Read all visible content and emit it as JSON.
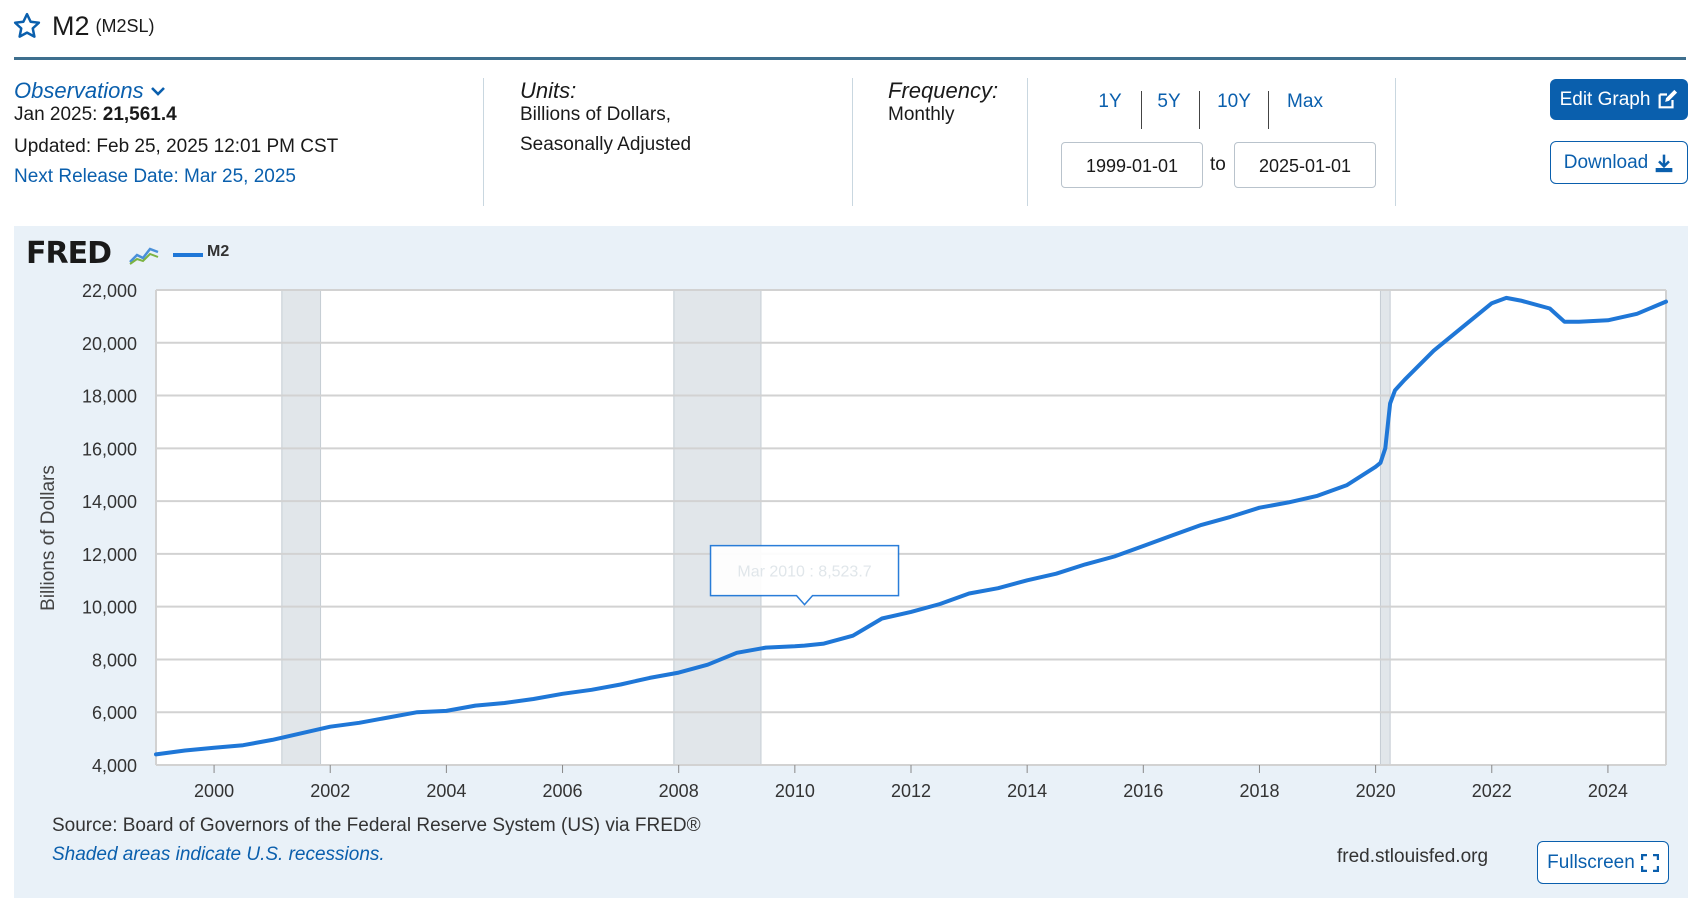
{
  "header": {
    "title": "M2",
    "series_id": "(M2SL)"
  },
  "observations": {
    "label": "Observations",
    "date_label": "Jan 2025:",
    "value": "21,561.4",
    "updated": "Updated: Feb 25, 2025 12:01 PM CST",
    "next_release": "Next Release Date: Mar 25, 2025"
  },
  "units": {
    "label": "Units:",
    "line1": "Billions of Dollars,",
    "line2": "Seasonally Adjusted"
  },
  "frequency": {
    "label": "Frequency:",
    "value": "Monthly"
  },
  "range": {
    "buttons": [
      "1Y",
      "5Y",
      "10Y",
      "Max"
    ],
    "start": "1999-01-01",
    "to": "to",
    "end": "2025-01-01"
  },
  "actions": {
    "edit": "Edit Graph",
    "download": "Download",
    "fullscreen": "Fullscreen"
  },
  "legend": {
    "logo": "FRED",
    "series": "M2"
  },
  "tooltip": {
    "text": "Mar 2010 : 8,523.7"
  },
  "footer": {
    "source": "Source: Board of Governors of the Federal Reserve System (US) via FRED®",
    "shaded": "Shaded areas indicate U.S. recessions.",
    "site": "fred.stlouisfed.org"
  },
  "colors": {
    "series": "#1f77d7",
    "accent": "#0a5fad",
    "panel": "#e9f1f8",
    "recession": "#e1e6ea"
  },
  "chart_data": {
    "type": "line",
    "ylabel": "Billions of Dollars",
    "xlabel": "",
    "x_ticks": [
      2000,
      2002,
      2004,
      2006,
      2008,
      2010,
      2012,
      2014,
      2016,
      2018,
      2020,
      2022,
      2024
    ],
    "y_ticks": [
      4000,
      6000,
      8000,
      10000,
      12000,
      14000,
      16000,
      18000,
      20000,
      22000
    ],
    "y_tick_labels": [
      "4,000",
      "6,000",
      "8,000",
      "10,000",
      "12,000",
      "14,000",
      "16,000",
      "18,000",
      "20,000",
      "22,000"
    ],
    "xlim": [
      "1999-01-01",
      "2025-01-01"
    ],
    "ylim": [
      4000,
      22000
    ],
    "grid": true,
    "recessions": [
      {
        "start": "2001-03-01",
        "end": "2001-11-01"
      },
      {
        "start": "2007-12-01",
        "end": "2009-06-01"
      },
      {
        "start": "2020-02-01",
        "end": "2020-04-01"
      }
    ],
    "series": [
      {
        "name": "M2",
        "x": [
          "1999-01-01",
          "1999-07-01",
          "2000-01-01",
          "2000-07-01",
          "2001-01-01",
          "2001-07-01",
          "2002-01-01",
          "2002-07-01",
          "2003-01-01",
          "2003-07-01",
          "2004-01-01",
          "2004-07-01",
          "2005-01-01",
          "2005-07-01",
          "2006-01-01",
          "2006-07-01",
          "2007-01-01",
          "2007-07-01",
          "2008-01-01",
          "2008-07-01",
          "2009-01-01",
          "2009-07-01",
          "2010-01-01",
          "2010-03-01",
          "2010-07-01",
          "2011-01-01",
          "2011-07-01",
          "2012-01-01",
          "2012-07-01",
          "2013-01-01",
          "2013-07-01",
          "2014-01-01",
          "2014-07-01",
          "2015-01-01",
          "2015-07-01",
          "2016-01-01",
          "2016-07-01",
          "2017-01-01",
          "2017-07-01",
          "2018-01-01",
          "2018-07-01",
          "2019-01-01",
          "2019-07-01",
          "2020-01-01",
          "2020-02-01",
          "2020-03-01",
          "2020-04-01",
          "2020-05-01",
          "2020-07-01",
          "2021-01-01",
          "2021-07-01",
          "2022-01-01",
          "2022-04-01",
          "2022-07-01",
          "2023-01-01",
          "2023-04-01",
          "2023-07-01",
          "2024-01-01",
          "2024-07-01",
          "2025-01-01"
        ],
        "y": [
          4400,
          4550,
          4650,
          4750,
          4950,
          5200,
          5450,
          5600,
          5800,
          6000,
          6050,
          6250,
          6350,
          6500,
          6700,
          6850,
          7050,
          7300,
          7500,
          7800,
          8250,
          8450,
          8500,
          8523.7,
          8600,
          8900,
          9550,
          9800,
          10100,
          10500,
          10700,
          11000,
          11250,
          11600,
          11900,
          12300,
          12700,
          13100,
          13400,
          13750,
          13950,
          14200,
          14600,
          15300,
          15450,
          16000,
          17700,
          18200,
          18600,
          19700,
          20600,
          21500,
          21700,
          21600,
          21300,
          20800,
          20800,
          20850,
          21100,
          21561.4
        ]
      }
    ]
  }
}
